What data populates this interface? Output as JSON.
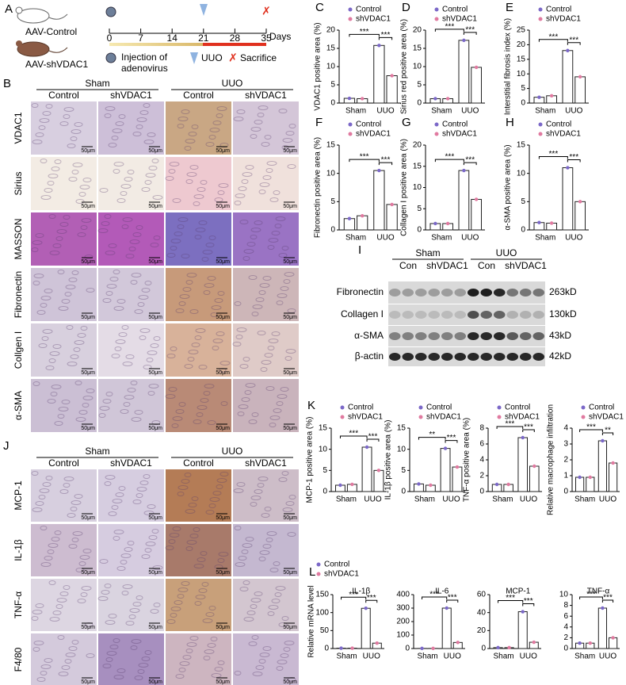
{
  "panel_a": {
    "label": "A",
    "groups": [
      "AAV-Control",
      "AAV-shVDAC1"
    ],
    "days": [
      0,
      7,
      14,
      21,
      28,
      35
    ],
    "days_unit": "Days",
    "legend": [
      "Injection of",
      "adenovirus",
      "UUO",
      "Sacrifice"
    ]
  },
  "panel_b": {
    "label": "B",
    "groups": [
      "Sham",
      "UUO"
    ],
    "columns": [
      "Control",
      "shVDAC1",
      "Control",
      "shVDAC1"
    ],
    "rows": [
      "VDAC1",
      "Sirius",
      "MASSON",
      "Fibronectin",
      "Collgen I",
      "α-SMA"
    ],
    "scale_bar": "50μm"
  },
  "panel_i": {
    "label": "I",
    "groups": [
      "Sham",
      "UUO"
    ],
    "columns": [
      "Con",
      "shVDAC1",
      "Con",
      "shVDAC1"
    ],
    "rows": [
      {
        "name": "Fibronectin",
        "size": "263kD"
      },
      {
        "name": "Collagen I",
        "size": "130kD"
      },
      {
        "name": "α-SMA",
        "size": "43kD"
      },
      {
        "name": "β-actin",
        "size": "42kD"
      }
    ]
  },
  "panel_j": {
    "label": "J",
    "groups": [
      "Sham",
      "UUO"
    ],
    "columns": [
      "Control",
      "shVDAC1",
      "Control",
      "shVDAC1"
    ],
    "rows": [
      "MCP-1",
      "IL-1β",
      "TNF-α",
      "F4/80"
    ],
    "scale_bar": "50μm"
  },
  "chart_data": [
    {
      "type": "bar",
      "panel": "C",
      "y_label": "VDAC1 positive area (%)",
      "categories": [
        "Sham",
        "UUO"
      ],
      "series": [
        {
          "name": "Control",
          "color": "#7b68c8",
          "values": [
            1.3,
            15.8
          ]
        },
        {
          "name": "shVDAC1",
          "color": "#e07aa0",
          "values": [
            1.2,
            7.5
          ]
        }
      ],
      "ylim": [
        0,
        20
      ],
      "yticks": [
        0,
        5,
        10,
        15,
        20
      ],
      "annotations": [
        "***",
        "***"
      ],
      "legend": true
    },
    {
      "type": "bar",
      "panel": "D",
      "y_label": "Sirius red positive area (%)",
      "categories": [
        "Sham",
        "UUO"
      ],
      "series": [
        {
          "name": "Control",
          "color": "#7b68c8",
          "values": [
            1.2,
            17.2
          ]
        },
        {
          "name": "shVDAC1",
          "color": "#e07aa0",
          "values": [
            1.2,
            9.8
          ]
        }
      ],
      "ylim": [
        0,
        20
      ],
      "yticks": [
        0,
        5,
        10,
        15,
        20
      ],
      "annotations": [
        "***",
        "***"
      ],
      "legend": true
    },
    {
      "type": "bar",
      "panel": "E",
      "y_label": "Interstitial fibrosis index (%)",
      "categories": [
        "Sham",
        "UUO"
      ],
      "series": [
        {
          "name": "Control",
          "color": "#7b68c8",
          "values": [
            2,
            18
          ]
        },
        {
          "name": "shVDAC1",
          "color": "#e07aa0",
          "values": [
            2.5,
            9
          ]
        }
      ],
      "ylim": [
        0,
        25
      ],
      "yticks": [
        0,
        5,
        10,
        15,
        20,
        25
      ],
      "annotations": [
        "***",
        "***"
      ],
      "legend": true
    },
    {
      "type": "bar",
      "panel": "F",
      "y_label": "Fibronectin positive area (%)",
      "categories": [
        "Sham",
        "UUO"
      ],
      "series": [
        {
          "name": "Control",
          "color": "#7b68c8",
          "values": [
            2,
            10.5
          ]
        },
        {
          "name": "shVDAC1",
          "color": "#e07aa0",
          "values": [
            2.5,
            4.5
          ]
        }
      ],
      "ylim": [
        0,
        15
      ],
      "yticks": [
        0,
        5,
        10,
        15
      ],
      "annotations": [
        "***",
        "***"
      ],
      "legend": true
    },
    {
      "type": "bar",
      "panel": "G",
      "y_label": "Collagen I positive area (%)",
      "categories": [
        "Sham",
        "UUO"
      ],
      "series": [
        {
          "name": "Control",
          "color": "#7b68c8",
          "values": [
            1.5,
            14
          ]
        },
        {
          "name": "shVDAC1",
          "color": "#e07aa0",
          "values": [
            1.5,
            7.2
          ]
        }
      ],
      "ylim": [
        0,
        20
      ],
      "yticks": [
        0,
        5,
        10,
        15,
        20
      ],
      "annotations": [
        "***",
        "***"
      ],
      "legend": true
    },
    {
      "type": "bar",
      "panel": "H",
      "y_label": "α-SMA positive area (%)",
      "categories": [
        "Sham",
        "UUO"
      ],
      "series": [
        {
          "name": "Control",
          "color": "#7b68c8",
          "values": [
            1.3,
            11
          ]
        },
        {
          "name": "shVDAC1",
          "color": "#e07aa0",
          "values": [
            1.2,
            5
          ]
        }
      ],
      "ylim": [
        0,
        15
      ],
      "yticks": [
        0,
        5,
        10,
        15
      ],
      "annotations": [
        "***",
        "***"
      ],
      "legend": true
    },
    {
      "type": "bar",
      "panel": "K",
      "y_label": "MCP-1 positive area (%)",
      "categories": [
        "Sham",
        "UUO"
      ],
      "series": [
        {
          "name": "Control",
          "color": "#7b68c8",
          "values": [
            1.5,
            10.5
          ]
        },
        {
          "name": "shVDAC1",
          "color": "#e07aa0",
          "values": [
            1.7,
            5
          ]
        }
      ],
      "ylim": [
        0,
        15
      ],
      "yticks": [
        0,
        5,
        10,
        15
      ],
      "annotations": [
        "***",
        "***"
      ],
      "legend": true
    },
    {
      "type": "bar",
      "y_label": "IL-1β positive area (%)",
      "categories": [
        "Sham",
        "UUO"
      ],
      "series": [
        {
          "name": "Control",
          "color": "#7b68c8",
          "values": [
            1.8,
            10.2
          ]
        },
        {
          "name": "shVDAC1",
          "color": "#e07aa0",
          "values": [
            1.5,
            5.8
          ]
        }
      ],
      "ylim": [
        0,
        15
      ],
      "yticks": [
        0,
        5,
        10,
        15
      ],
      "annotations": [
        "**",
        "***"
      ],
      "legend": true
    },
    {
      "type": "bar",
      "y_label": "TNF-α positive area (%)",
      "categories": [
        "Sham",
        "UUO"
      ],
      "series": [
        {
          "name": "Control",
          "color": "#7b68c8",
          "values": [
            0.9,
            6.8
          ]
        },
        {
          "name": "shVDAC1",
          "color": "#e07aa0",
          "values": [
            0.9,
            3.2
          ]
        }
      ],
      "ylim": [
        0,
        8
      ],
      "yticks": [
        0,
        2,
        4,
        6,
        8
      ],
      "annotations": [
        "***",
        "***"
      ],
      "legend": true
    },
    {
      "type": "bar",
      "y_label": "Relative macrophage infiltration",
      "categories": [
        "Sham",
        "UUO"
      ],
      "series": [
        {
          "name": "Control",
          "color": "#7b68c8",
          "values": [
            0.9,
            3.2
          ]
        },
        {
          "name": "shVDAC1",
          "color": "#e07aa0",
          "values": [
            0.9,
            1.8
          ]
        }
      ],
      "ylim": [
        0,
        4
      ],
      "yticks": [
        0,
        1,
        2,
        3,
        4
      ],
      "annotations": [
        "***",
        "**"
      ],
      "legend": true
    },
    {
      "type": "bar",
      "panel": "L",
      "title": "IL-1β",
      "y_label": "Relative mRNA level",
      "categories": [
        "Sham",
        "UUO"
      ],
      "series": [
        {
          "name": "Control",
          "color": "#7b68c8",
          "values": [
            1,
            112
          ]
        },
        {
          "name": "shVDAC1",
          "color": "#e07aa0",
          "values": [
            1,
            15
          ]
        }
      ],
      "ylim": [
        0,
        150
      ],
      "yticks": [
        0,
        50,
        100,
        150
      ],
      "annotations": [
        "***",
        "***"
      ],
      "legend": true
    },
    {
      "type": "bar",
      "title": "IL-6",
      "categories": [
        "Sham",
        "UUO"
      ],
      "series": [
        {
          "name": "Control",
          "color": "#7b68c8",
          "values": [
            1,
            300
          ]
        },
        {
          "name": "shVDAC1",
          "color": "#e07aa0",
          "values": [
            1,
            45
          ]
        }
      ],
      "ylim": [
        0,
        400
      ],
      "yticks": [
        0,
        100,
        200,
        300,
        400
      ],
      "annotations": [
        "***",
        "***"
      ],
      "legend": false
    },
    {
      "type": "bar",
      "title": "MCP-1",
      "categories": [
        "Sham",
        "UUO"
      ],
      "series": [
        {
          "name": "Control",
          "color": "#7b68c8",
          "values": [
            1,
            41
          ]
        },
        {
          "name": "shVDAC1",
          "color": "#e07aa0",
          "values": [
            1,
            7
          ]
        }
      ],
      "ylim": [
        0,
        60
      ],
      "yticks": [
        0,
        20,
        40,
        60
      ],
      "annotations": [
        "***",
        "***"
      ],
      "legend": false
    },
    {
      "type": "bar",
      "title": "TNF-α",
      "categories": [
        "Sham",
        "UUO"
      ],
      "series": [
        {
          "name": "Control",
          "color": "#7b68c8",
          "values": [
            1,
            7.5
          ]
        },
        {
          "name": "shVDAC1",
          "color": "#e07aa0",
          "values": [
            1,
            2
          ]
        }
      ],
      "ylim": [
        0,
        10
      ],
      "yticks": [
        0,
        2,
        4,
        6,
        8,
        10
      ],
      "annotations": [
        "***",
        "***"
      ],
      "legend": false
    }
  ]
}
